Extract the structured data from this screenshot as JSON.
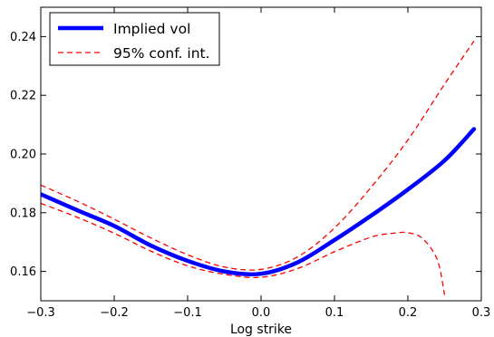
{
  "chart_data": {
    "type": "line",
    "title": "",
    "xlabel": "Log strike",
    "ylabel": "",
    "xlim": [
      -0.3,
      0.3
    ],
    "ylim": [
      0.15,
      0.25
    ],
    "xticks": [
      -0.3,
      -0.2,
      -0.1,
      0.0,
      0.1,
      0.2,
      0.3
    ],
    "xtick_labels": [
      "−0.3",
      "−0.2",
      "−0.1",
      "0.0",
      "0.1",
      "0.2",
      "0.3"
    ],
    "yticks": [
      0.16,
      0.18,
      0.2,
      0.22,
      0.24
    ],
    "ytick_labels": [
      "0.16",
      "0.18",
      "0.20",
      "0.22",
      "0.24"
    ],
    "grid": false,
    "legend_position": "top-left",
    "series": [
      {
        "name": "Implied vol",
        "color": "#0000ff",
        "style": "solid",
        "x": [
          -0.3,
          -0.25,
          -0.2,
          -0.15,
          -0.1,
          -0.05,
          0.0,
          0.05,
          0.1,
          0.15,
          0.2,
          0.25,
          0.29
        ],
        "y": [
          0.1863,
          0.1808,
          0.1755,
          0.1688,
          0.1636,
          0.16,
          0.1592,
          0.1631,
          0.1707,
          0.179,
          0.1879,
          0.1978,
          0.2085
        ]
      },
      {
        "name": "95% conf. int.",
        "color": "#ff0000",
        "style": "dashed",
        "x": [
          -0.3,
          -0.25,
          -0.2,
          -0.15,
          -0.1,
          -0.05,
          0.0,
          0.05,
          0.1,
          0.15,
          0.2,
          0.25,
          0.29
        ],
        "y": [
          0.1894,
          0.1839,
          0.1778,
          0.1714,
          0.1657,
          0.1615,
          0.1607,
          0.165,
          0.1748,
          0.1887,
          0.2048,
          0.2238,
          0.2385
        ]
      },
      {
        "name": "",
        "color": "#ff0000",
        "style": "dashed",
        "x": [
          -0.3,
          -0.25,
          -0.2,
          -0.15,
          -0.1,
          -0.05,
          0.0,
          0.05,
          0.1,
          0.15,
          0.18,
          0.2,
          0.22,
          0.24,
          0.25
        ],
        "y": [
          0.1832,
          0.1784,
          0.173,
          0.1669,
          0.1619,
          0.159,
          0.158,
          0.161,
          0.1667,
          0.1717,
          0.173,
          0.1732,
          0.1712,
          0.164,
          0.152
        ]
      }
    ]
  }
}
